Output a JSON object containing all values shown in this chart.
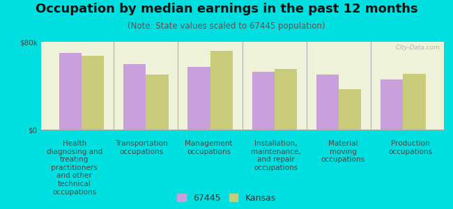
{
  "title": "Occupation by median earnings in the past 12 months",
  "subtitle": "(Note: State values scaled to 67445 population)",
  "background_color": "#00e0e0",
  "plot_bg_color": "#eef2d8",
  "categories": [
    "Health\ndiagnosing and\ntreating\npractitioners\nand other\ntechnical\noccupations",
    "Transportation\noccupations",
    "Management\noccupations",
    "Installation,\nmaintenance,\nand repair\noccupations",
    "Material\nmoving\noccupations",
    "Production\noccupations"
  ],
  "values_67445": [
    70000,
    60000,
    57000,
    53000,
    50000,
    46000
  ],
  "values_kansas": [
    67000,
    50000,
    72000,
    55000,
    37000,
    51000
  ],
  "color_67445": "#c9a0dc",
  "color_kansas": "#c8cc7a",
  "ylim": [
    0,
    80000
  ],
  "yticks": [
    0,
    80000
  ],
  "ytick_labels": [
    "$0",
    "$80k"
  ],
  "legend_labels": [
    "67445",
    "Kansas"
  ],
  "bar_width": 0.35,
  "title_fontsize": 13,
  "subtitle_fontsize": 8.5,
  "tick_fontsize": 7.5,
  "legend_fontsize": 9
}
